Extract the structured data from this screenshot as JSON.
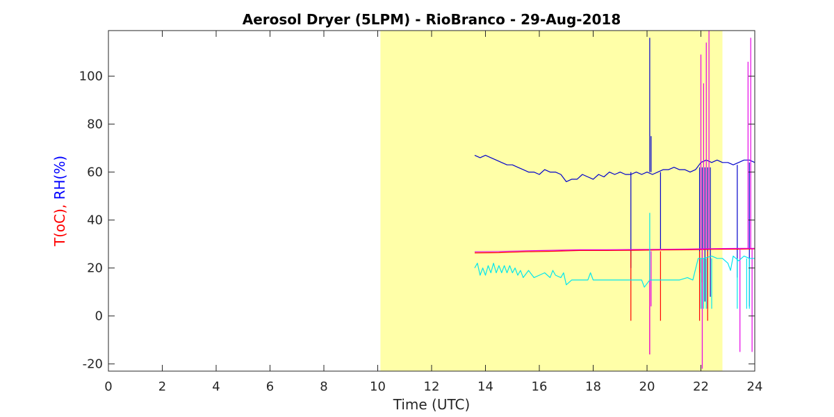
{
  "chart_data": {
    "type": "line",
    "title": "Aerosol Dryer (5LPM) - RioBranco - 29-Aug-2018",
    "xlabel": "Time (UTC)",
    "ylabel_parts": [
      {
        "text": "T(oC), ",
        "color": "#ff0000"
      },
      {
        "text": "RH(%)",
        "color": "#0000ff"
      }
    ],
    "xlim": [
      0,
      24
    ],
    "ylim": [
      -23,
      119
    ],
    "xticks": [
      0,
      2,
      4,
      6,
      8,
      10,
      12,
      14,
      16,
      18,
      20,
      22,
      24
    ],
    "yticks": [
      -20,
      0,
      20,
      40,
      60,
      80,
      100
    ],
    "grid": false,
    "shaded_region": {
      "x0": 10.1,
      "x1": 22.8,
      "color": "#ffffa8"
    },
    "series": [
      {
        "color": "#0000cc",
        "x": [
          13.6,
          13.8,
          14.0,
          14.2,
          14.4,
          14.6,
          14.8,
          15.0,
          15.2,
          15.4,
          15.6,
          15.8,
          16.0,
          16.2,
          16.4,
          16.6,
          16.8,
          17.0,
          17.2,
          17.4,
          17.6,
          17.8,
          18.0,
          18.2,
          18.4,
          18.6,
          18.8,
          19.0,
          19.2,
          19.4,
          19.6,
          19.8,
          20.0,
          20.2,
          20.4,
          20.6,
          20.8,
          21.0,
          21.2,
          21.4,
          21.6,
          21.8,
          22.0,
          22.2,
          22.4,
          22.6,
          22.8,
          23.0,
          23.2,
          23.4,
          23.6,
          23.8,
          24.0
        ],
        "y": [
          67,
          66,
          67,
          66,
          65,
          64,
          63,
          63,
          62,
          61,
          60,
          60,
          59,
          61,
          60,
          60,
          59,
          56,
          57,
          57,
          59,
          58,
          57,
          59,
          58,
          60,
          59,
          60,
          59,
          59,
          60,
          59,
          60,
          59,
          60,
          61,
          61,
          62,
          61,
          61,
          60,
          61,
          64,
          65,
          64,
          65,
          64,
          64,
          63,
          64,
          65,
          65,
          64
        ],
        "spikes": [
          [
            19.4,
            60,
            20
          ],
          [
            20.1,
            60,
            116
          ],
          [
            20.15,
            60,
            75
          ],
          [
            20.5,
            60,
            28
          ],
          [
            21.95,
            62,
            18
          ],
          [
            22.05,
            62,
            3
          ],
          [
            22.15,
            62,
            6
          ],
          [
            22.25,
            62,
            3
          ],
          [
            22.35,
            62,
            8
          ],
          [
            23.35,
            63,
            16
          ],
          [
            23.8,
            64,
            4
          ]
        ]
      },
      {
        "color": "#ff0000",
        "x": [
          13.6,
          14.5,
          15.5,
          16.5,
          17.5,
          18.5,
          19.5,
          20.5,
          21.5,
          22.5,
          23.5,
          24.0
        ],
        "y": [
          26.3,
          26.4,
          26.8,
          27.0,
          27.3,
          27.3,
          27.4,
          27.5,
          27.6,
          27.8,
          27.9,
          28.0
        ],
        "spikes": [
          [
            19.4,
            27,
            -2
          ],
          [
            20.1,
            27,
            -16
          ],
          [
            20.5,
            27,
            -2
          ],
          [
            21.95,
            27,
            -2
          ],
          [
            22.05,
            27,
            14
          ],
          [
            22.25,
            27,
            -2
          ]
        ]
      },
      {
        "color": "#e600e6",
        "x": [
          13.6,
          14.5,
          15.5,
          16.5,
          17.5,
          18.5,
          19.5,
          20.5,
          21.5,
          22.5,
          23.5,
          24.0
        ],
        "y": [
          26.8,
          26.9,
          27.2,
          27.4,
          27.6,
          27.6,
          27.7,
          27.8,
          27.9,
          28.1,
          28.2,
          28.2
        ],
        "spikes": [
          [
            20.1,
            27,
            -16
          ],
          [
            20.15,
            27,
            4
          ],
          [
            22.0,
            28,
            109
          ],
          [
            22.05,
            28,
            -22
          ],
          [
            22.1,
            28,
            97
          ],
          [
            22.2,
            28,
            114
          ],
          [
            22.3,
            28,
            119
          ],
          [
            23.45,
            28,
            -15
          ],
          [
            23.75,
            28,
            106
          ],
          [
            23.85,
            28,
            116
          ],
          [
            23.9,
            28,
            -15
          ]
        ]
      },
      {
        "color": "#00e5ee",
        "x": [
          13.6,
          13.7,
          13.8,
          13.9,
          14.0,
          14.1,
          14.2,
          14.3,
          14.4,
          14.5,
          14.6,
          14.7,
          14.8,
          14.9,
          15.0,
          15.1,
          15.2,
          15.3,
          15.4,
          15.6,
          15.8,
          16.0,
          16.2,
          16.4,
          16.5,
          16.6,
          16.8,
          16.9,
          17.0,
          17.2,
          17.4,
          17.6,
          17.8,
          17.9,
          18.0,
          18.2,
          18.5,
          18.8,
          19.0,
          19.5,
          19.8,
          19.9,
          20.1,
          20.3,
          20.6,
          20.9,
          21.2,
          21.5,
          21.7,
          21.9,
          22.1,
          22.4,
          22.6,
          22.8,
          23.0,
          23.1,
          23.2,
          23.4,
          23.6,
          23.8,
          24.0
        ],
        "y": [
          20,
          22,
          17,
          20,
          17,
          21,
          18,
          22,
          18,
          21,
          18,
          21,
          18,
          21,
          18,
          20,
          17,
          19,
          16,
          19,
          16,
          17,
          18,
          16,
          19,
          17,
          16,
          18,
          13,
          15,
          15,
          15,
          15,
          18,
          15,
          15,
          15,
          15,
          15,
          15,
          15,
          12,
          15,
          15,
          15,
          15,
          15,
          16,
          15,
          24,
          24,
          25,
          24,
          24,
          22,
          19,
          25,
          23,
          25,
          24,
          24
        ],
        "spikes": [
          [
            20.1,
            15,
            43
          ],
          [
            22.0,
            24,
            3
          ],
          [
            22.1,
            24,
            3
          ],
          [
            22.2,
            24,
            3
          ],
          [
            22.4,
            24,
            3
          ],
          [
            23.35,
            24,
            3
          ],
          [
            23.7,
            24,
            3
          ],
          [
            23.8,
            24,
            3
          ]
        ]
      }
    ]
  }
}
